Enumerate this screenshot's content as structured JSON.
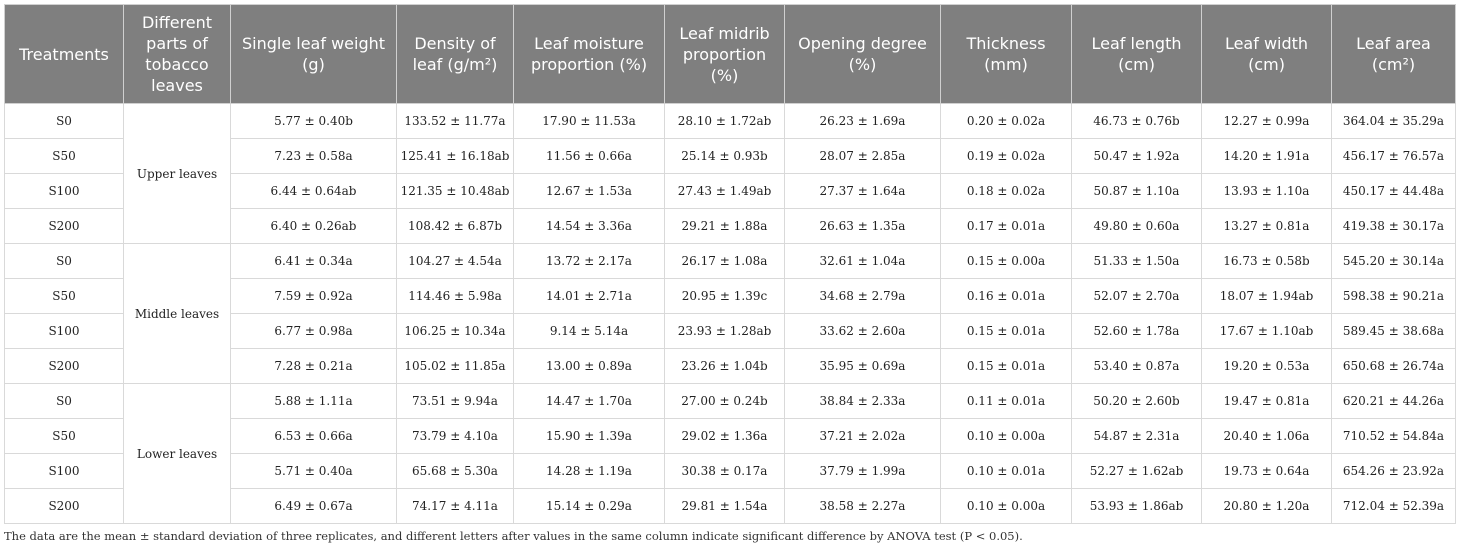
{
  "headers": [
    "Treatments",
    "Different parts of tobacco leaves",
    "Single leaf weight (g)",
    "Density of leaf (g/m²)",
    "Leaf moisture proportion (%)",
    "Leaf midrib proportion (%)",
    "Opening degree (%)",
    "Thickness (mm)",
    "Leaf length (cm)",
    "Leaf width (cm)",
    "Leaf area (cm²)"
  ],
  "groups": [
    {
      "part": "Upper leaves",
      "rows": [
        [
          "S0",
          "5.77 ± 0.40b",
          "133.52 ± 11.77a",
          "17.90 ± 11.53a",
          "28.10 ± 1.72ab",
          "26.23 ± 1.69a",
          "0.20 ± 0.02a",
          "46.73 ± 0.76b",
          "12.27 ± 0.99a",
          "364.04 ± 35.29a"
        ],
        [
          "S50",
          "7.23 ± 0.58a",
          "125.41 ± 16.18ab",
          "11.56 ± 0.66a",
          "25.14 ± 0.93b",
          "28.07 ± 2.85a",
          "0.19 ± 0.02a",
          "50.47 ± 1.92a",
          "14.20 ± 1.91a",
          "456.17 ± 76.57a"
        ],
        [
          "S100",
          "6.44 ± 0.64ab",
          "121.35 ± 10.48ab",
          "12.67 ± 1.53a",
          "27.43 ± 1.49ab",
          "27.37 ± 1.64a",
          "0.18 ± 0.02a",
          "50.87 ± 1.10a",
          "13.93 ± 1.10a",
          "450.17 ± 44.48a"
        ],
        [
          "S200",
          "6.40 ± 0.26ab",
          "108.42 ± 6.87b",
          "14.54 ± 3.36a",
          "29.21 ± 1.88a",
          "26.63 ± 1.35a",
          "0.17 ± 0.01a",
          "49.80 ± 0.60a",
          "13.27 ± 0.81a",
          "419.38 ± 30.17a"
        ]
      ]
    },
    {
      "part": "Middle leaves",
      "rows": [
        [
          "S0",
          "6.41 ± 0.34a",
          "104.27 ± 4.54a",
          "13.72 ± 2.17a",
          "26.17 ± 1.08a",
          "32.61 ± 1.04a",
          "0.15 ± 0.00a",
          "51.33 ± 1.50a",
          "16.73 ± 0.58b",
          "545.20 ± 30.14a"
        ],
        [
          "S50",
          "7.59 ± 0.92a",
          "114.46 ± 5.98a",
          "14.01 ± 2.71a",
          "20.95 ± 1.39c",
          "34.68 ± 2.79a",
          "0.16 ± 0.01a",
          "52.07 ± 2.70a",
          "18.07 ± 1.94ab",
          "598.38 ± 90.21a"
        ],
        [
          "S100",
          "6.77 ± 0.98a",
          "106.25 ± 10.34a",
          "9.14 ± 5.14a",
          "23.93 ± 1.28ab",
          "33.62 ± 2.60a",
          "0.15 ± 0.01a",
          "52.60 ± 1.78a",
          "17.67 ± 1.10ab",
          "589.45 ± 38.68a"
        ],
        [
          "S200",
          "7.28 ± 0.21a",
          "105.02 ± 11.85a",
          "13.00 ± 0.89a",
          "23.26 ± 1.04b",
          "35.95 ± 0.69a",
          "0.15 ± 0.01a",
          "53.40 ± 0.87a",
          "19.20 ± 0.53a",
          "650.68 ± 26.74a"
        ]
      ]
    },
    {
      "part": "Lower leaves",
      "rows": [
        [
          "S0",
          "5.88 ± 1.11a",
          "73.51 ± 9.94a",
          "14.47 ± 1.70a",
          "27.00 ± 0.24b",
          "38.84 ± 2.33a",
          "0.11 ± 0.01a",
          "50.20 ± 2.60b",
          "19.47 ± 0.81a",
          "620.21 ± 44.26a"
        ],
        [
          "S50",
          "6.53 ± 0.66a",
          "73.79 ± 4.10a",
          "15.90 ± 1.39a",
          "29.02 ± 1.36a",
          "37.21 ± 2.02a",
          "0.10 ± 0.00a",
          "54.87 ± 2.31a",
          "20.40 ± 1.06a",
          "710.52 ± 54.84a"
        ],
        [
          "S100",
          "5.71 ± 0.40a",
          "65.68 ± 5.30a",
          "14.28 ± 1.19a",
          "30.38 ± 0.17a",
          "37.79 ± 1.99a",
          "0.10 ± 0.01a",
          "52.27 ± 1.62ab",
          "19.73 ± 0.64a",
          "654.26 ± 23.92a"
        ],
        [
          "S200",
          "6.49 ± 0.67a",
          "74.17 ± 4.11a",
          "15.14 ± 0.29a",
          "29.81 ± 1.54a",
          "38.58 ± 2.27a",
          "0.10 ± 0.00a",
          "53.93 ± 1.86ab",
          "20.80 ± 1.20a",
          "712.04 ± 52.39a"
        ]
      ]
    }
  ],
  "footnote": "The data are the mean ± standard deviation of three replicates, and different letters after values in the same column indicate significant difference by ANOVA test (P < 0.05)."
}
